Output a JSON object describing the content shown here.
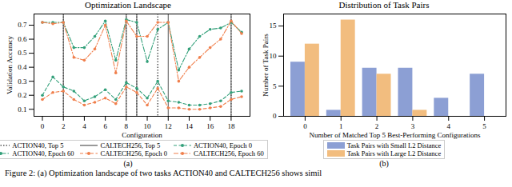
{
  "chart_data": [
    {
      "type": "line",
      "title": "Optimization Landscape",
      "panel_label": "(a)",
      "xlabel": "Configuration",
      "ylabel": "Validation Accuracy",
      "x": [
        0,
        1,
        2,
        3,
        4,
        5,
        6,
        7,
        8,
        9,
        10,
        11,
        12,
        13,
        14,
        15,
        16,
        17,
        18,
        19
      ],
      "xlim": [
        -0.8,
        19.8
      ],
      "xticks": [
        0,
        2,
        4,
        6,
        8,
        10,
        12,
        14,
        16,
        18
      ],
      "ylim": [
        0.05,
        0.78
      ],
      "yticks": [
        0.1,
        0.2,
        0.3,
        0.4,
        0.5,
        0.6,
        0.7
      ],
      "reference_lines": [
        {
          "name": "ACTION40, Top 5",
          "color": "#000000",
          "line_style": "dotted",
          "x": [
            2,
            8,
            9,
            11,
            18
          ]
        },
        {
          "name": "CALTECH256, Top 5",
          "color": "#555555",
          "line_style": "solid",
          "x": [
            2,
            8,
            9,
            12,
            18
          ]
        }
      ],
      "series": [
        {
          "name": "ACTION40, Epoch 0",
          "color": "#33a07a",
          "line_style": "dashed",
          "marker": "circle",
          "values": [
            0.2,
            0.33,
            0.26,
            0.23,
            0.16,
            0.19,
            0.24,
            0.17,
            0.29,
            0.25,
            0.18,
            0.3,
            0.16,
            0.15,
            0.13,
            0.13,
            0.14,
            0.16,
            0.22,
            0.23
          ]
        },
        {
          "name": "ACTION40, Epoch 60",
          "color": "#33a07a",
          "line_style": "dashdot",
          "marker": "circle",
          "values": [
            0.72,
            0.72,
            0.72,
            0.54,
            0.54,
            0.62,
            0.73,
            0.45,
            0.74,
            0.72,
            0.44,
            0.67,
            0.72,
            0.38,
            0.53,
            0.62,
            0.67,
            0.68,
            0.72,
            0.65
          ]
        },
        {
          "name": "CALTECH256, Epoch 0",
          "color": "#f07f4c",
          "line_style": "dashed",
          "marker": "circle",
          "values": [
            0.17,
            0.22,
            0.23,
            0.17,
            0.13,
            0.15,
            0.18,
            0.14,
            0.26,
            0.22,
            0.13,
            0.25,
            0.11,
            0.11,
            0.1,
            0.1,
            0.11,
            0.12,
            0.17,
            0.19
          ]
        },
        {
          "name": "CALTECH256, Epoch 60",
          "color": "#f07f4c",
          "line_style": "dashdot",
          "marker": "circle",
          "values": [
            0.72,
            0.71,
            0.72,
            0.47,
            0.45,
            0.53,
            0.7,
            0.36,
            0.73,
            0.62,
            0.62,
            0.72,
            0.72,
            0.3,
            0.4,
            0.47,
            0.54,
            0.6,
            0.73,
            0.64
          ]
        }
      ]
    },
    {
      "type": "bar",
      "title": "Distribution of Task Pairs",
      "panel_label": "(b)",
      "xlabel": "Number of Matched Top 5 Best-Performing Configurations",
      "ylabel": "Number of Task Pairs",
      "categories": [
        0,
        1,
        2,
        3,
        4,
        5
      ],
      "ylim": [
        0,
        17
      ],
      "yticks": [
        0,
        5,
        10,
        15
      ],
      "legend": "below",
      "series": [
        {
          "name": "Task Pairs with Small L2 Distance",
          "color": "#8c9fd4",
          "values": [
            9,
            1,
            8,
            8,
            3,
            7
          ]
        },
        {
          "name": "Task Pairs with Large L2 Distance",
          "color": "#f2bd7f",
          "values": [
            12,
            16,
            7,
            1,
            0,
            0
          ]
        }
      ]
    }
  ],
  "caption": "Figure 2: (a) Optimization landscape of two tasks ACTION40 and CALTECH256 shows simil"
}
